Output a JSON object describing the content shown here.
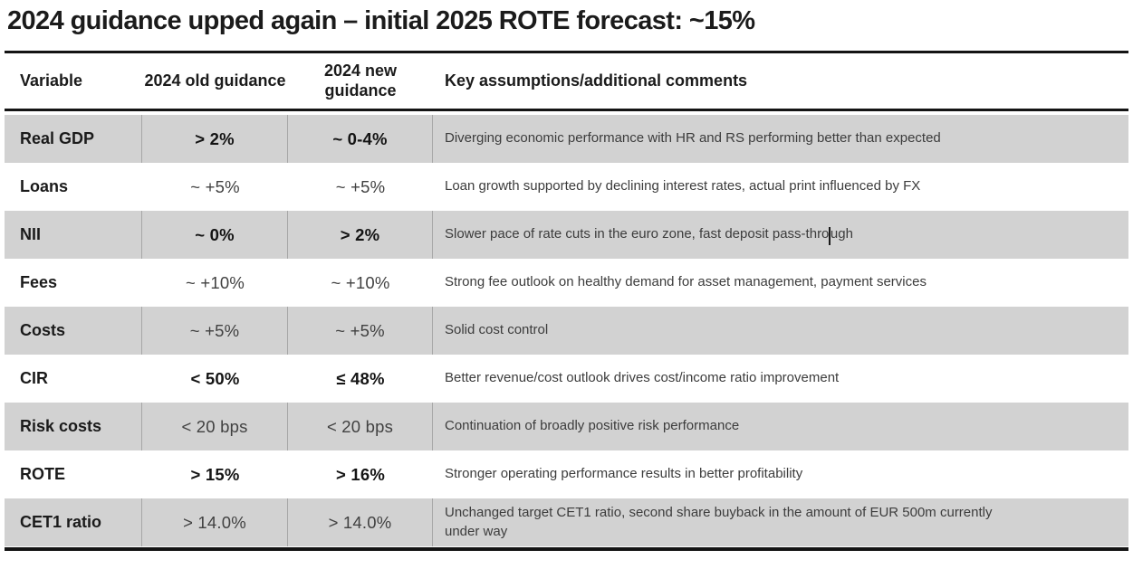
{
  "title": "2024 guidance upped again – initial 2025 ROTE forecast: ~15%",
  "colors": {
    "row_shade": "#d2d2d2",
    "column_divider": "#a7a7a7",
    "table_rule": "#141414"
  },
  "table": {
    "headers": {
      "variable": "Variable",
      "old_guidance": "2024 old guidance",
      "new_guidance": "2024 new guidance",
      "comments": "Key assumptions/additional comments"
    },
    "rows": [
      {
        "variable": "Real GDP",
        "old": "> 2%",
        "new": "~ 0-4%",
        "values_bold": true,
        "shaded": true,
        "comment": "Diverging economic performance with HR and RS performing better than expected"
      },
      {
        "variable": "Loans",
        "old": "~ +5%",
        "new": "~ +5%",
        "values_bold": false,
        "shaded": false,
        "comment": "Loan growth supported by declining interest rates, actual print influenced by FX"
      },
      {
        "variable": "NII",
        "old": "~ 0%",
        "new": "> 2%",
        "values_bold": true,
        "shaded": true,
        "comment": "Slower pace of rate cuts in the euro zone, fast deposit pass-through",
        "caret_index": 65
      },
      {
        "variable": "Fees",
        "old": "~ +10%",
        "new": "~ +10%",
        "values_bold": false,
        "shaded": false,
        "comment": "Strong fee outlook on healthy demand for asset management, payment services"
      },
      {
        "variable": "Costs",
        "old": "~ +5%",
        "new": "~ +5%",
        "values_bold": false,
        "shaded": true,
        "comment": "Solid cost control"
      },
      {
        "variable": "CIR",
        "old": "< 50%",
        "new": "≤ 48%",
        "values_bold": true,
        "shaded": false,
        "comment": "Better revenue/cost outlook drives cost/income ratio improvement"
      },
      {
        "variable": "Risk costs",
        "old": "< 20 bps",
        "new": "< 20 bps",
        "values_bold": false,
        "shaded": true,
        "comment": "Continuation of broadly positive risk performance"
      },
      {
        "variable": "ROTE",
        "old": "> 15%",
        "new": "> 16%",
        "values_bold": true,
        "shaded": false,
        "comment": "Stronger operating performance results in better profitability"
      },
      {
        "variable": "CET1 ratio",
        "old": "> 14.0%",
        "new": "> 14.0%",
        "values_bold": false,
        "shaded": true,
        "comment": "Unchanged target CET1 ratio, second share buyback in the amount of EUR 500m currently under way"
      }
    ]
  }
}
